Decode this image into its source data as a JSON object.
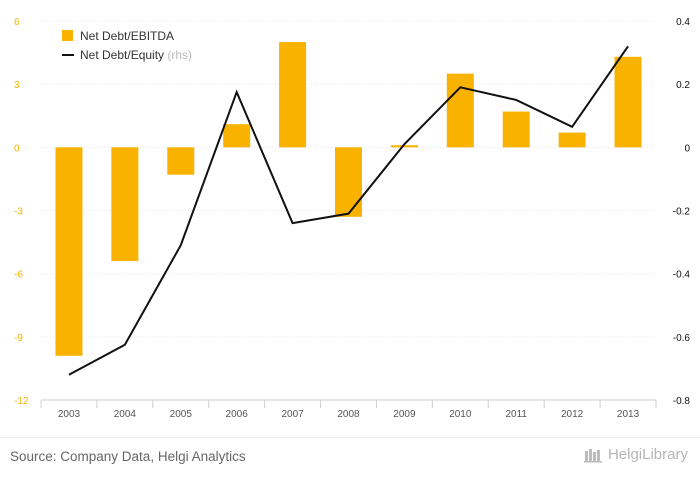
{
  "chart_data": {
    "type": "bar",
    "categories": [
      "2003",
      "2004",
      "2005",
      "2006",
      "2007",
      "2008",
      "2009",
      "2010",
      "2011",
      "2012",
      "2013"
    ],
    "series": [
      {
        "name": "Net Debt/EBITDA",
        "type": "bar",
        "axis": "left",
        "color": "#f9b200",
        "values": [
          -9.9,
          -5.4,
          -1.3,
          1.1,
          5.0,
          -3.3,
          0.1,
          3.5,
          1.7,
          0.7,
          4.3
        ]
      },
      {
        "name": "Net Debt/Equity",
        "type": "line",
        "axis": "right",
        "color": "#111111",
        "values": [
          -0.72,
          -0.625,
          -0.31,
          0.175,
          -0.24,
          -0.21,
          0.01,
          0.19,
          0.15,
          0.065,
          0.32
        ]
      }
    ],
    "legend": [
      {
        "label": "Net Debt/EBITDA",
        "suffix": ""
      },
      {
        "label": "Net Debt/Equity",
        "suffix": "(rhs)"
      }
    ],
    "left_axis": {
      "ylim": [
        -12,
        6
      ],
      "ticks": [
        "6",
        "3",
        "0",
        "-3",
        "-6",
        "-9",
        "-12"
      ],
      "tick_values": [
        6,
        3,
        0,
        -3,
        -6,
        -9,
        -12
      ],
      "color": "#f9b200"
    },
    "right_axis": {
      "ylim": [
        -0.8,
        0.4
      ],
      "ticks": [
        "0.4",
        "0.2",
        "0",
        "-0.2",
        "-0.4",
        "-0.6",
        "-0.8"
      ],
      "tick_values": [
        0.4,
        0.2,
        0,
        -0.2,
        -0.4,
        -0.6,
        -0.8
      ],
      "color": "#111111"
    },
    "grid": true,
    "legend_position": "top-left"
  },
  "footer": {
    "source": "Source: Company Data, Helgi Analytics",
    "logo_text": "HelgiLibrary"
  }
}
